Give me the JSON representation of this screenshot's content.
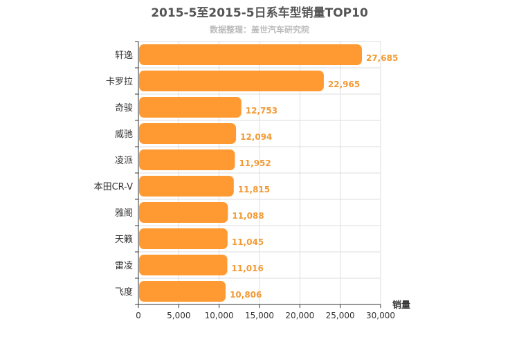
{
  "chart_data": {
    "type": "bar",
    "orientation": "horizontal",
    "title": "2015-5至2015-5日系车型销量TOP10",
    "subtitle": "数据整理：盖世汽车研究院",
    "categories": [
      "轩逸",
      "卡罗拉",
      "奇骏",
      "威驰",
      "凌派",
      "本田CR-V",
      "雅阁",
      "天籁",
      "雷凌",
      "飞度"
    ],
    "values": [
      27685,
      22965,
      12753,
      12094,
      11952,
      11815,
      11088,
      11045,
      11016,
      10806
    ],
    "value_labels": [
      "27,685",
      "22,965",
      "12,753",
      "12,094",
      "11,952",
      "11,815",
      "11,088",
      "11,045",
      "11,016",
      "10,806"
    ],
    "xlabel": "销量",
    "xlim": [
      0,
      30000
    ],
    "x_ticks": [
      0,
      5000,
      10000,
      15000,
      20000,
      25000,
      30000
    ],
    "x_tick_labels": [
      "0",
      "5,000",
      "10,000",
      "15,000",
      "20,000",
      "25,000",
      "30,000"
    ],
    "bar_color": "#ff9a33",
    "grid": true
  }
}
